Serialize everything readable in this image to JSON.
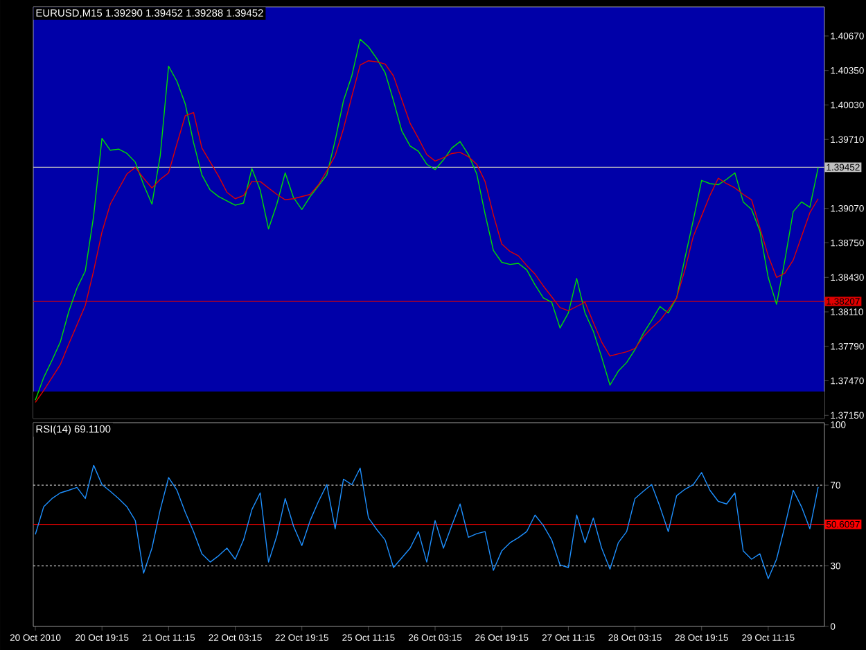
{
  "chart_data": [
    {
      "type": "line",
      "title": "EURUSD,M15  1.39290 1.39452 1.39288 1.39452",
      "categories": [
        null,
        null,
        null,
        null,
        null,
        null,
        null,
        null,
        null,
        null,
        null,
        null,
        null,
        null,
        null,
        null,
        null,
        null,
        null,
        null,
        null,
        null,
        null,
        null,
        null,
        null,
        null,
        null,
        null,
        null,
        null,
        null,
        null,
        null,
        null,
        null,
        null,
        null,
        null,
        null,
        null,
        null,
        null,
        null,
        null,
        null,
        null,
        null,
        null,
        null,
        null,
        null,
        null,
        null,
        null,
        null,
        null,
        null,
        null,
        null,
        null,
        null,
        null,
        null,
        null,
        null,
        null,
        null,
        null,
        null,
        null,
        null,
        null,
        null,
        null,
        null,
        null,
        null,
        null,
        null,
        null,
        null,
        null,
        null,
        null,
        null,
        null,
        null,
        null,
        null,
        null,
        null,
        null,
        null,
        null
      ],
      "ylim": [
        1.3712,
        1.4094
      ],
      "yticks": [
        {
          "value": 1.4067,
          "label": "1.40670"
        },
        {
          "value": 1.4035,
          "label": "1.40350"
        },
        {
          "value": 1.4003,
          "label": "1.40030"
        },
        {
          "value": 1.3971,
          "label": "1.39710"
        },
        {
          "value": 1.3907,
          "label": "1.39070"
        },
        {
          "value": 1.3875,
          "label": "1.38750"
        },
        {
          "value": 1.3843,
          "label": "1.38430"
        },
        {
          "value": 1.3811,
          "label": "1.38110"
        },
        {
          "value": 1.3779,
          "label": "1.37790"
        },
        {
          "value": 1.3747,
          "label": "1.37470"
        },
        {
          "value": 1.3715,
          "label": "1.37150"
        }
      ],
      "bands": [
        {
          "axis": "y",
          "from": 1.3712,
          "to": 1.3737,
          "color": "#000000"
        }
      ],
      "ref_lines": [
        {
          "axis": "y",
          "value": 1.39452,
          "label": "1.39452",
          "color": "#c0c0c0"
        },
        {
          "axis": "y",
          "value": 1.38207,
          "label": "1.38207",
          "color": "#e00000"
        }
      ],
      "series": [
        {
          "color": "#00e000",
          "values": [
            1.3729,
            1.375,
            1.3766,
            1.3783,
            1.3811,
            1.3833,
            1.3849,
            1.39,
            1.3972,
            1.3961,
            1.3962,
            1.3958,
            1.395,
            1.3929,
            1.3911,
            1.3956,
            1.4039,
            1.4025,
            1.4004,
            1.3968,
            1.3938,
            1.3924,
            1.3918,
            1.3914,
            1.391,
            1.3912,
            1.3944,
            1.3924,
            1.3888,
            1.3911,
            1.394,
            1.3917,
            1.3906,
            1.3918,
            1.3928,
            1.3938,
            1.397,
            1.4007,
            1.403,
            1.4064,
            1.4057,
            1.4046,
            1.4033,
            1.4007,
            1.3979,
            1.3965,
            1.396,
            1.3948,
            1.3943,
            1.3952,
            1.3963,
            1.3969,
            1.3957,
            1.3939,
            1.3902,
            1.3868,
            1.3857,
            1.3855,
            1.3856,
            1.385,
            1.3836,
            1.3824,
            1.382,
            1.3796,
            1.381,
            1.3842,
            1.381,
            1.3793,
            1.3769,
            1.3743,
            1.3756,
            1.3764,
            1.3776,
            1.3791,
            1.3803,
            1.3816,
            1.381,
            1.3824,
            1.3861,
            1.3896,
            1.3933,
            1.393,
            1.3929,
            1.3934,
            1.394,
            1.3913,
            1.3906,
            1.3886,
            1.3843,
            1.3818,
            1.3859,
            1.3904,
            1.3913,
            1.3908,
            1.3945
          ]
        },
        {
          "color": "#e00000",
          "values": [
            1.3727,
            1.3738,
            1.375,
            1.3762,
            1.3781,
            1.3799,
            1.3817,
            1.3849,
            1.3885,
            1.3911,
            1.3925,
            1.3939,
            1.3945,
            1.3935,
            1.3926,
            1.3934,
            1.394,
            1.3967,
            1.3993,
            1.3996,
            1.3963,
            1.395,
            1.3937,
            1.3922,
            1.3916,
            1.3919,
            1.3932,
            1.3932,
            1.3926,
            1.392,
            1.3915,
            1.3916,
            1.3918,
            1.392,
            1.3929,
            1.3942,
            1.3956,
            1.3981,
            1.4011,
            1.404,
            1.4044,
            1.4043,
            1.4041,
            1.403,
            1.4008,
            1.3986,
            1.3972,
            1.3957,
            1.3951,
            1.3954,
            1.3958,
            1.3959,
            1.3955,
            1.3948,
            1.3932,
            1.3901,
            1.3874,
            1.3867,
            1.3863,
            1.3854,
            1.3846,
            1.3835,
            1.3825,
            1.3815,
            1.3812,
            1.3816,
            1.382,
            1.3801,
            1.3783,
            1.377,
            1.3772,
            1.3774,
            1.3777,
            1.3788,
            1.3796,
            1.3803,
            1.3813,
            1.3824,
            1.385,
            1.3881,
            1.39,
            1.3919,
            1.3935,
            1.393,
            1.3926,
            1.392,
            1.3915,
            1.3889,
            1.3863,
            1.3843,
            1.3847,
            1.3859,
            1.3881,
            1.3903,
            1.3916
          ]
        }
      ]
    },
    {
      "type": "line",
      "title": "RSI(14) 69.1100",
      "categories": [
        "20 Oct 2010",
        null,
        null,
        null,
        null,
        null,
        null,
        null,
        "20 Oct 19:15",
        null,
        null,
        null,
        null,
        null,
        null,
        null,
        "21 Oct 11:15",
        null,
        null,
        null,
        null,
        null,
        null,
        null,
        "22 Oct 03:15",
        null,
        null,
        null,
        null,
        null,
        null,
        null,
        "22 Oct 19:15",
        null,
        null,
        null,
        null,
        null,
        null,
        null,
        "25 Oct 11:15",
        null,
        null,
        null,
        null,
        null,
        null,
        null,
        "26 Oct 03:15",
        null,
        null,
        null,
        null,
        null,
        null,
        null,
        "26 Oct 19:15",
        null,
        null,
        null,
        null,
        null,
        null,
        null,
        "27 Oct 11:15",
        null,
        null,
        null,
        null,
        null,
        null,
        null,
        "28 Oct 03:15",
        null,
        null,
        null,
        null,
        null,
        null,
        null,
        "28 Oct 19:15",
        null,
        null,
        null,
        null,
        null,
        null,
        null,
        "29 Oct 11:15",
        null,
        null,
        null,
        null,
        null,
        null
      ],
      "ylim": [
        0,
        101
      ],
      "yticks": [
        0,
        30,
        70,
        100
      ],
      "ref_lines": [
        {
          "axis": "y",
          "value": 70,
          "color": "#c0c0c0",
          "line_style": "dashed"
        },
        {
          "axis": "y",
          "value": 30,
          "color": "#c0c0c0",
          "line_style": "dashed"
        },
        {
          "axis": "y",
          "value": 50.6097,
          "label": "50.6097",
          "color": "#ff0000"
        }
      ],
      "series": [
        {
          "color": "#1e90ff",
          "values": [
            45.6,
            59.3,
            63.4,
            66.2,
            67.5,
            68.9,
            63.4,
            79.9,
            70.3,
            67,
            63.4,
            59.3,
            52.5,
            26.4,
            38.8,
            57.9,
            73.8,
            67.5,
            56.6,
            47,
            36,
            31.9,
            35,
            38.8,
            33.3,
            42.9,
            57.9,
            66.2,
            31.9,
            45,
            63.4,
            49.7,
            40.1,
            52.5,
            62,
            70.3,
            48.4,
            73,
            70.3,
            78.5,
            53.8,
            48,
            42.9,
            29.2,
            34,
            38.8,
            47,
            31.9,
            52.5,
            38.8,
            50,
            60.7,
            44.2,
            46,
            47,
            27.8,
            37.4,
            41.5,
            44,
            47,
            55.2,
            50,
            42.9,
            30.5,
            29.2,
            55.2,
            41.5,
            53.8,
            38.8,
            28.4,
            41.5,
            47,
            63.4,
            67,
            70.3,
            59.3,
            47,
            64.8,
            68,
            70.3,
            76.3,
            67.5,
            62,
            60.7,
            66.2,
            37.4,
            33.3,
            36,
            23.7,
            33.3,
            49.7,
            67.5,
            59.3,
            48.4,
            69.1
          ]
        }
      ]
    }
  ]
}
